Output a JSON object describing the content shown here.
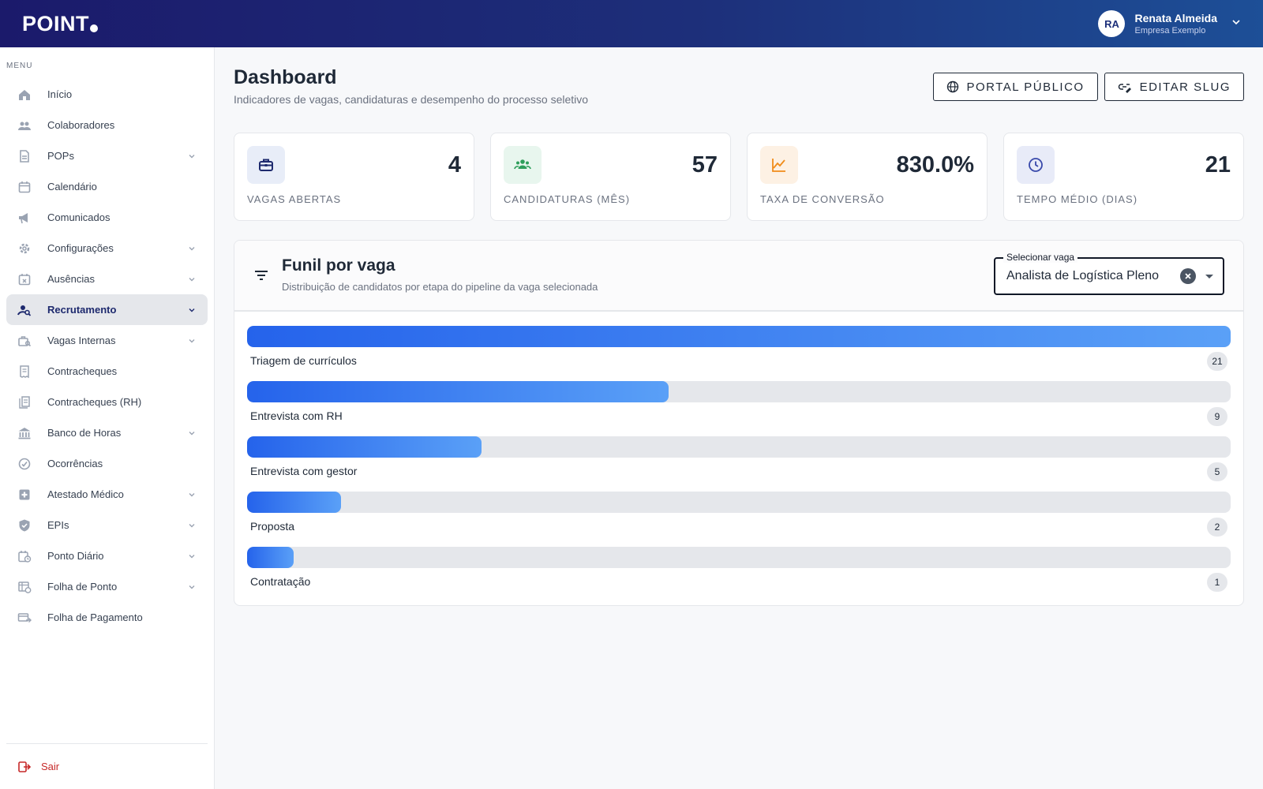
{
  "brand": {
    "name": "POINT"
  },
  "user": {
    "initials": "RA",
    "name": "Renata Almeida",
    "company": "Empresa Exemplo"
  },
  "sidebar": {
    "menu_label": "MENU",
    "items": [
      {
        "label": "Início",
        "icon": "home-icon",
        "expandable": false
      },
      {
        "label": "Colaboradores",
        "icon": "people-icon",
        "expandable": false
      },
      {
        "label": "POPs",
        "icon": "document-icon",
        "expandable": true
      },
      {
        "label": "Calendário",
        "icon": "calendar-icon",
        "expandable": false
      },
      {
        "label": "Comunicados",
        "icon": "megaphone-icon",
        "expandable": false
      },
      {
        "label": "Configurações",
        "icon": "gear-icon",
        "expandable": true
      },
      {
        "label": "Ausências",
        "icon": "calendar-x-icon",
        "expandable": true
      },
      {
        "label": "Recrutamento",
        "icon": "person-search-icon",
        "expandable": true,
        "active": true
      },
      {
        "label": "Vagas Internas",
        "icon": "briefcase-search-icon",
        "expandable": true
      },
      {
        "label": "Contracheques",
        "icon": "receipt-icon",
        "expandable": false
      },
      {
        "label": "Contracheques (RH)",
        "icon": "receipt-multiple-icon",
        "expandable": false
      },
      {
        "label": "Banco de Horas",
        "icon": "bank-icon",
        "expandable": true
      },
      {
        "label": "Ocorrências",
        "icon": "check-circle-icon",
        "expandable": false
      },
      {
        "label": "Atestado Médico",
        "icon": "medical-icon",
        "expandable": true
      },
      {
        "label": "EPIs",
        "icon": "shield-icon",
        "expandable": true
      },
      {
        "label": "Ponto Diário",
        "icon": "calendar-clock-icon",
        "expandable": true
      },
      {
        "label": "Folha de Ponto",
        "icon": "table-clock-icon",
        "expandable": true
      },
      {
        "label": "Folha de Pagamento",
        "icon": "payment-icon",
        "expandable": false
      }
    ],
    "logout_label": "Sair"
  },
  "header": {
    "title": "Dashboard",
    "subtitle": "Indicadores de vagas, candidaturas e desempenho do processo seletivo",
    "portal_button": "PORTAL PÚBLICO",
    "slug_button": "EDITAR SLUG"
  },
  "stats": [
    {
      "value": "4",
      "label": "VAGAS ABERTAS",
      "icon": "briefcase-icon",
      "color": "#1e2a6e",
      "bg": "#e8edf8"
    },
    {
      "value": "57",
      "label": "CANDIDATURAS (MÊS)",
      "icon": "group-icon",
      "color": "#2e9e5b",
      "bg": "#e8f6ee"
    },
    {
      "value": "830.0%",
      "label": "TAXA DE CONVERSÃO",
      "icon": "trend-up-icon",
      "color": "#f08c1a",
      "bg": "#fdf1e4"
    },
    {
      "value": "21",
      "label": "TEMPO MÉDIO (DIAS)",
      "icon": "clock-icon",
      "color": "#3949ab",
      "bg": "#e8ebf8"
    }
  ],
  "funnel": {
    "title": "Funil por vaga",
    "subtitle": "Distribuição de candidatos por etapa do pipeline da vaga selecionada",
    "select_label": "Selecionar vaga",
    "select_value": "Analista de Logística Pleno",
    "stages": [
      {
        "name": "Triagem de currículos",
        "count": 21
      },
      {
        "name": "Entrevista com RH",
        "count": 9
      },
      {
        "name": "Entrevista com gestor",
        "count": 5
      },
      {
        "name": "Proposta",
        "count": 2
      },
      {
        "name": "Contratação",
        "count": 1
      }
    ],
    "bar_color_start": "#2563eb",
    "bar_color_end": "#5aa0f7"
  }
}
